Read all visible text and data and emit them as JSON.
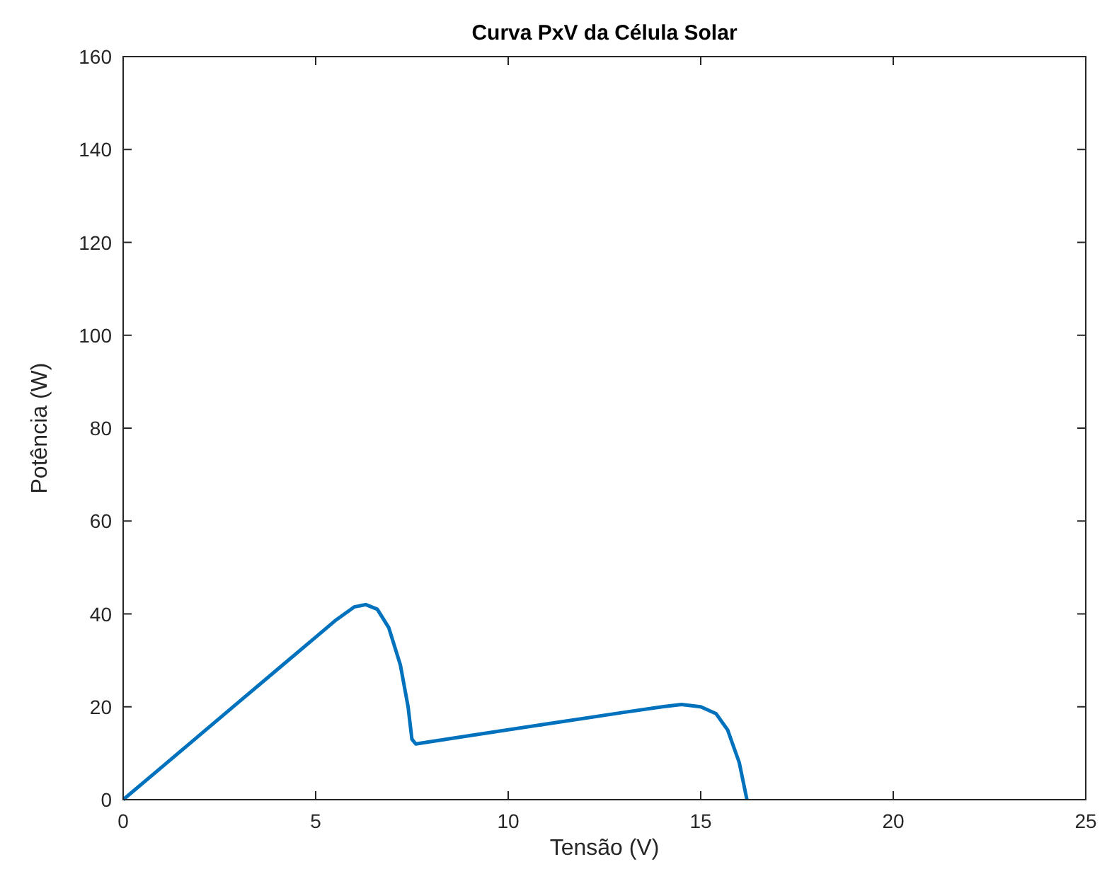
{
  "chart_data": {
    "type": "line",
    "title": "Curva PxV da Célula Solar",
    "xlabel": "Tensão (V)",
    "ylabel": "Potência (W)",
    "x": [
      0,
      1,
      2,
      3,
      4,
      5,
      5.5,
      6,
      6.3,
      6.6,
      6.9,
      7.2,
      7.4,
      7.5,
      7.6,
      9,
      11,
      13,
      14,
      14.5,
      15,
      15.4,
      15.7,
      16,
      16.2
    ],
    "series": [
      {
        "color": "#0072bd",
        "values": [
          0,
          7,
          14,
          21,
          28,
          35,
          38.5,
          41.5,
          42,
          41,
          37,
          29,
          20,
          13,
          12,
          13.8,
          16.3,
          18.8,
          20,
          20.5,
          20,
          18.5,
          15,
          8,
          0
        ]
      }
    ],
    "xlim": [
      0,
      25
    ],
    "xticks": [
      0,
      5,
      10,
      15,
      20,
      25
    ],
    "ylim": [
      0,
      160
    ],
    "yticks": [
      0,
      20,
      40,
      60,
      80,
      100,
      120,
      140,
      160
    ],
    "grid": false,
    "line_style": "solid"
  }
}
